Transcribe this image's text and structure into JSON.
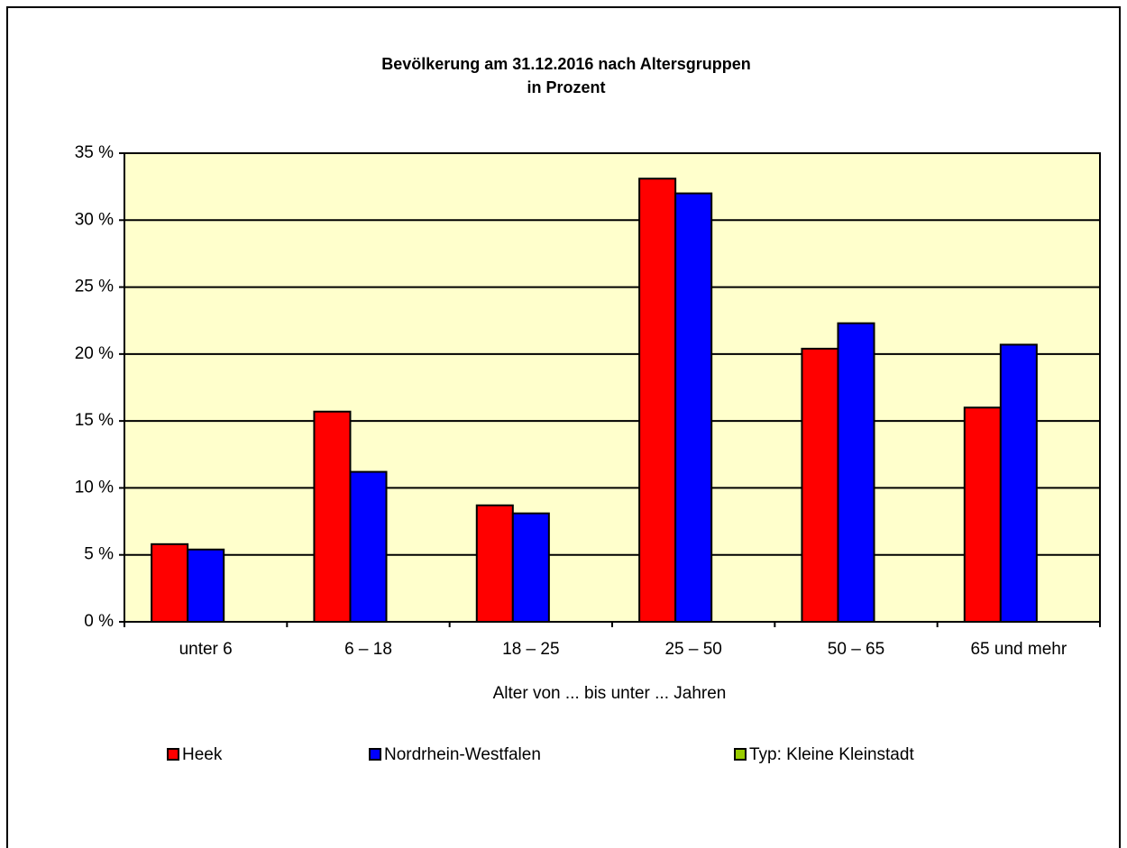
{
  "chart_data": {
    "type": "bar",
    "title": "Bevölkerung am 31.12.2016 nach Altersgruppen",
    "subtitle": "in Prozent",
    "x_label": "Alter von ... bis unter ... Jahren",
    "categories": [
      "unter 6",
      "6 – 18",
      "18 – 25",
      "25 – 50",
      "50 – 65",
      "65 und mehr"
    ],
    "series": [
      {
        "name": "Heek",
        "color": "#ff0000",
        "values": [
          5.8,
          15.7,
          8.7,
          33.1,
          20.4,
          16.0
        ]
      },
      {
        "name": "Nordrhein-Westfalen",
        "color": "#0000ff",
        "values": [
          5.4,
          11.2,
          8.1,
          32.0,
          22.3,
          20.7
        ]
      },
      {
        "name": "Typ: Kleine Kleinstadt",
        "color": "#99cc00",
        "values": [
          null,
          null,
          null,
          null,
          null,
          null
        ]
      }
    ],
    "ylim": [
      0,
      35
    ],
    "yticks": [
      {
        "value": 0,
        "label": "0 %"
      },
      {
        "value": 5,
        "label": "5 %"
      },
      {
        "value": 10,
        "label": "10 %"
      },
      {
        "value": 15,
        "label": "15 %"
      },
      {
        "value": 20,
        "label": "20 %"
      },
      {
        "value": 25,
        "label": "25 %"
      },
      {
        "value": 30,
        "label": "30 %"
      },
      {
        "value": 35,
        "label": "35 %"
      }
    ],
    "grid": true,
    "plot_background": "#ffffcc",
    "legend": "bottom"
  }
}
